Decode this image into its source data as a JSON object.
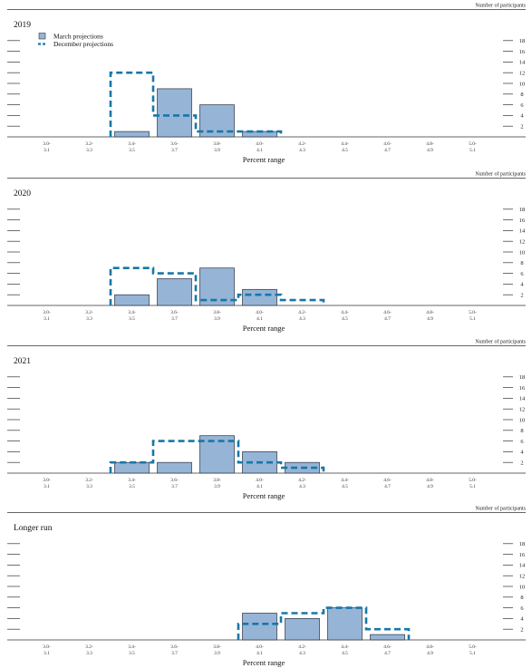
{
  "chart_data": [
    {
      "type": "bar",
      "title": "2019",
      "xlabel": "Percent range",
      "ylabel": "Number of participants",
      "categories": [
        "3.0-\n3.1",
        "3.2-\n3.3",
        "3.4-\n3.5",
        "3.6-\n3.7",
        "3.8-\n3.9",
        "4.0-\n4.1",
        "4.2-\n4.3",
        "4.4-\n4.5",
        "4.6-\n4.7",
        "4.8-\n4.9",
        "5.0-\n5.1"
      ],
      "yticks": [
        2,
        4,
        6,
        8,
        10,
        12,
        14,
        16,
        18
      ],
      "ylim": [
        0,
        20
      ],
      "legend": [
        "March projections",
        "December projections"
      ],
      "series": [
        {
          "name": "March projections",
          "values": [
            0,
            0,
            1,
            9,
            6,
            1,
            0,
            0,
            0,
            0,
            0
          ]
        },
        {
          "name": "December projections",
          "values": [
            0,
            0,
            12,
            4,
            1,
            1,
            0,
            0,
            0,
            0,
            0
          ]
        }
      ]
    },
    {
      "type": "bar",
      "title": "2020",
      "xlabel": "Percent range",
      "ylabel": "Number of participants",
      "categories": [
        "3.0-\n3.1",
        "3.2-\n3.3",
        "3.4-\n3.5",
        "3.6-\n3.7",
        "3.8-\n3.9",
        "4.0-\n4.1",
        "4.2-\n4.3",
        "4.4-\n4.5",
        "4.6-\n4.7",
        "4.8-\n4.9",
        "5.0-\n5.1"
      ],
      "yticks": [
        2,
        4,
        6,
        8,
        10,
        12,
        14,
        16,
        18
      ],
      "ylim": [
        0,
        20
      ],
      "series": [
        {
          "name": "March projections",
          "values": [
            0,
            0,
            2,
            5,
            7,
            3,
            0,
            0,
            0,
            0,
            0
          ]
        },
        {
          "name": "December projections",
          "values": [
            0,
            0,
            7,
            6,
            1,
            2,
            1,
            0,
            0,
            0,
            0
          ]
        }
      ]
    },
    {
      "type": "bar",
      "title": "2021",
      "xlabel": "Percent range",
      "ylabel": "Number of participants",
      "categories": [
        "3.0-\n3.1",
        "3.2-\n3.3",
        "3.4-\n3.5",
        "3.6-\n3.7",
        "3.8-\n3.9",
        "4.0-\n4.1",
        "4.2-\n4.3",
        "4.4-\n4.5",
        "4.6-\n4.7",
        "4.8-\n4.9",
        "5.0-\n5.1"
      ],
      "yticks": [
        2,
        4,
        6,
        8,
        10,
        12,
        14,
        16,
        18
      ],
      "ylim": [
        0,
        20
      ],
      "series": [
        {
          "name": "March projections",
          "values": [
            0,
            0,
            2,
            2,
            7,
            4,
            2,
            0,
            0,
            0,
            0
          ]
        },
        {
          "name": "December projections",
          "values": [
            0,
            0,
            2,
            6,
            6,
            2,
            1,
            0,
            0,
            0,
            0
          ]
        }
      ]
    },
    {
      "type": "bar",
      "title": "Longer run",
      "xlabel": "Percent range",
      "ylabel": "Number of participants",
      "categories": [
        "3.0-\n3.1",
        "3.2-\n3.3",
        "3.4-\n3.5",
        "3.6-\n3.7",
        "3.8-\n3.9",
        "4.0-\n4.1",
        "4.2-\n4.3",
        "4.4-\n4.5",
        "4.6-\n4.7",
        "4.8-\n4.9",
        "5.0-\n5.1"
      ],
      "yticks": [
        2,
        4,
        6,
        8,
        10,
        12,
        14,
        16,
        18
      ],
      "ylim": [
        0,
        20
      ],
      "series": [
        {
          "name": "March projections",
          "values": [
            0,
            0,
            0,
            0,
            0,
            5,
            4,
            6,
            1,
            0,
            0
          ]
        },
        {
          "name": "December projections",
          "values": [
            0,
            0,
            0,
            0,
            0,
            3,
            5,
            6,
            2,
            0,
            0
          ]
        }
      ]
    }
  ],
  "colors": {
    "bar_fill": "#96b4d6",
    "bar_stroke": "#2b3340",
    "dashed": "#1777a8",
    "axis": "#333333",
    "text": "#111111"
  }
}
